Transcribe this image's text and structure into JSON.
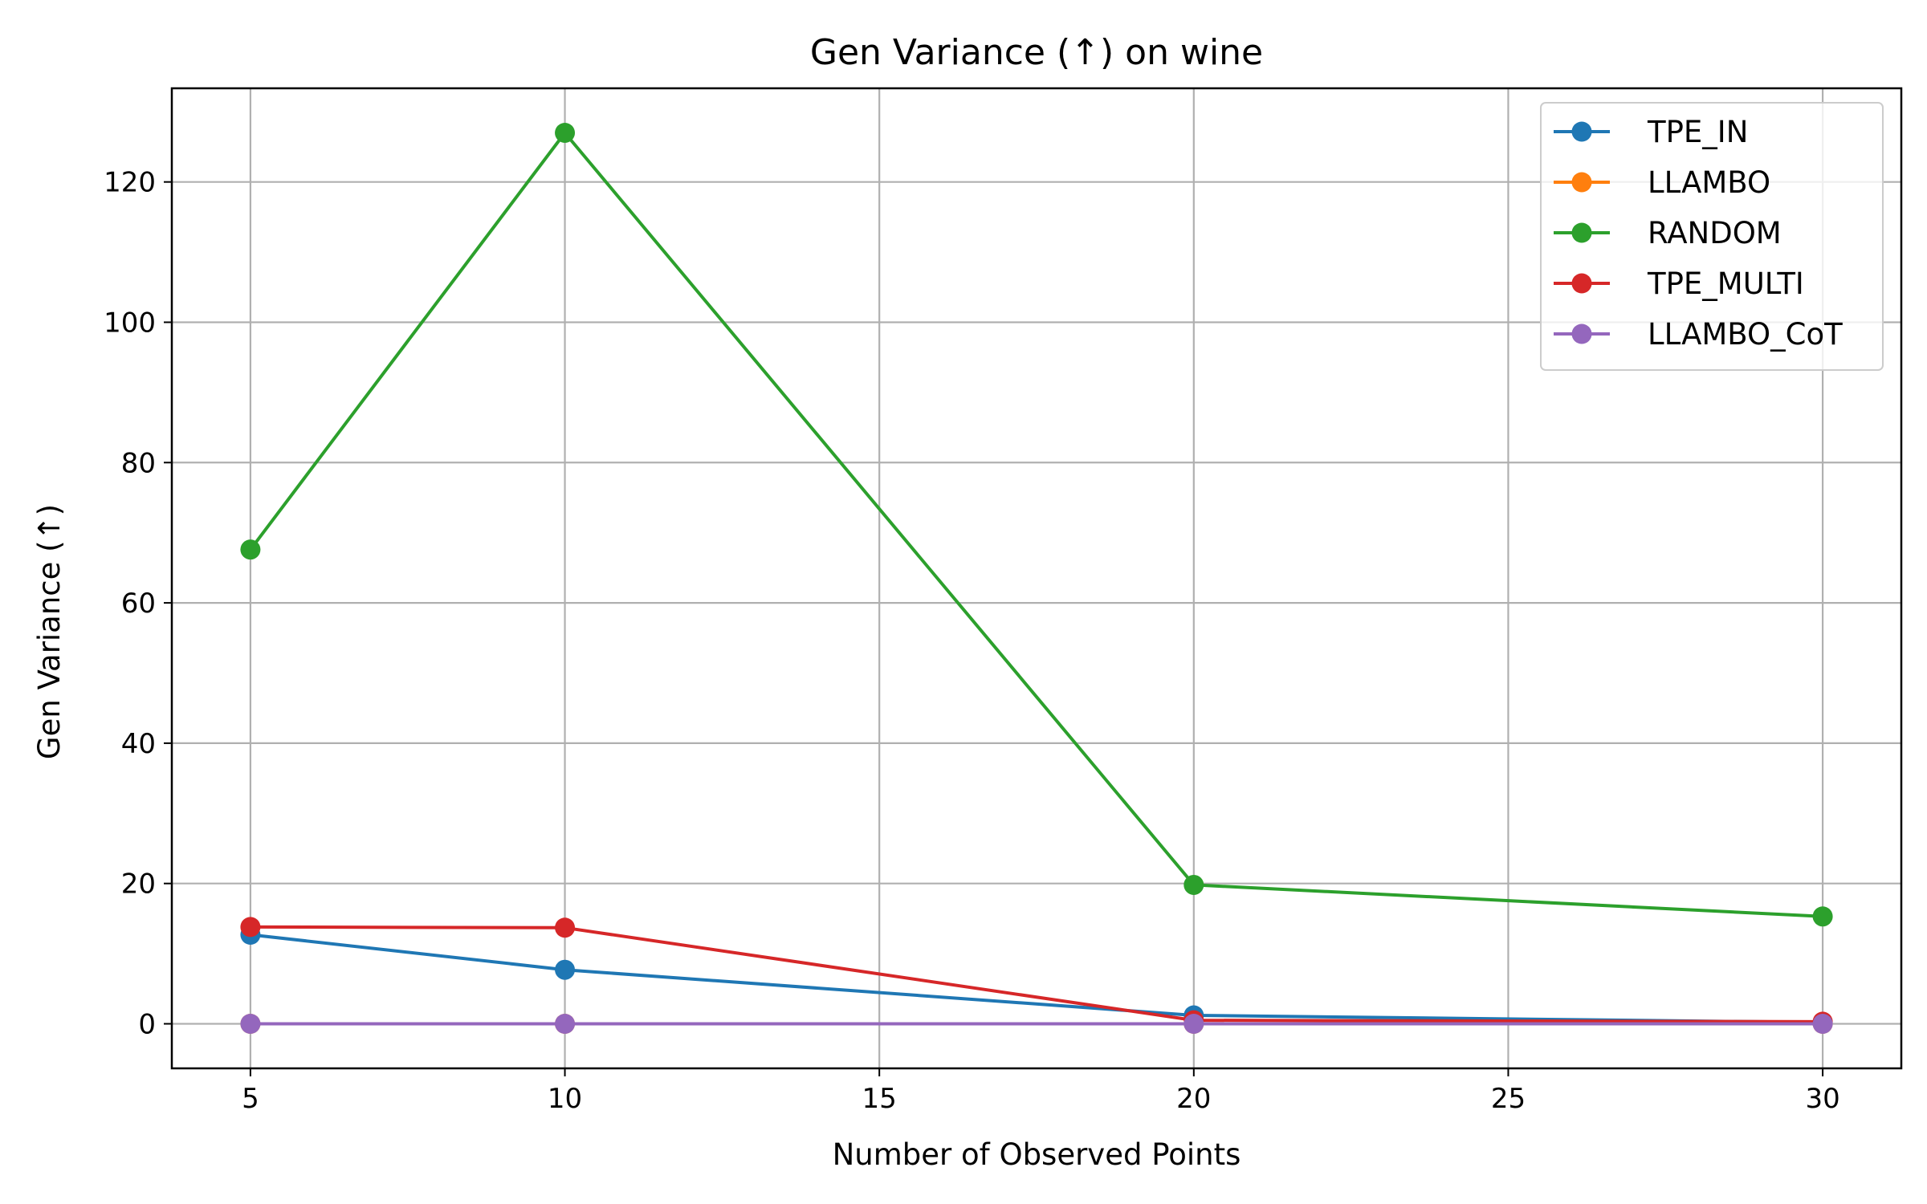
{
  "chart_data": {
    "type": "line",
    "title": "Gen Variance (↑) on wine",
    "xlabel": "Number of Observed Points",
    "ylabel": "Gen Variance (↑)",
    "x": [
      5,
      10,
      20,
      30
    ],
    "xlim": [
      3.75,
      31.25
    ],
    "ylim": [
      -6.35,
      133.35
    ],
    "xticks": [
      5,
      10,
      15,
      20,
      25,
      30
    ],
    "yticks": [
      0,
      20,
      40,
      60,
      80,
      100,
      120
    ],
    "grid": true,
    "legend_position": "top-right",
    "series": [
      {
        "name": "TPE_IN",
        "color": "#1f77b4",
        "values": [
          12.7,
          7.7,
          1.2,
          0.2
        ]
      },
      {
        "name": "LLAMBO",
        "color": "#ff7f0e",
        "values": [
          0.0,
          0.0,
          0.0,
          0.0
        ]
      },
      {
        "name": "RANDOM",
        "color": "#2ca02c",
        "values": [
          67.6,
          127.0,
          19.8,
          15.3
        ]
      },
      {
        "name": "TPE_MULTI",
        "color": "#d62728",
        "values": [
          13.8,
          13.7,
          0.5,
          0.3
        ]
      },
      {
        "name": "LLAMBO_CoT",
        "color": "#9467bd",
        "values": [
          0.0,
          0.0,
          0.0,
          0.0
        ]
      }
    ]
  }
}
